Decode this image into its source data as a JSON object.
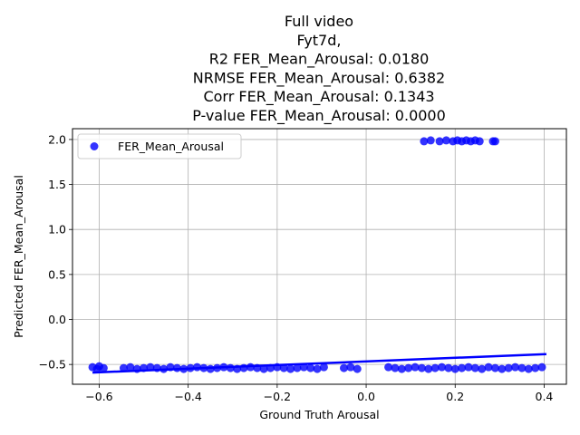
{
  "chart_data": {
    "type": "scatter",
    "title_lines": [
      "Full video",
      "Fyt7d,",
      "R2 FER_Mean_Arousal: 0.0180",
      "NRMSE FER_Mean_Arousal: 0.6382",
      "Corr FER_Mean_Arousal: 0.1343",
      "P-value FER_Mean_Arousal: 0.0000"
    ],
    "xlabel": "Ground Truth Arousal",
    "ylabel": "Predicted FER_Mean_Arousal",
    "xlim": [
      -0.66,
      0.45
    ],
    "ylim": [
      -0.72,
      2.12
    ],
    "xticks": [
      -0.6,
      -0.4,
      -0.2,
      0.0,
      0.2,
      0.4
    ],
    "xtick_labels": [
      "−0.6",
      "−0.4",
      "−0.2",
      "0.0",
      "0.2",
      "0.4"
    ],
    "yticks": [
      -0.5,
      0.0,
      0.5,
      1.0,
      1.5,
      2.0
    ],
    "ytick_labels": [
      "−0.5",
      "0.0",
      "0.5",
      "1.0",
      "1.5",
      "2.0"
    ],
    "grid": true,
    "legend_position": "top-left",
    "series": [
      {
        "name": "FER_Mean_Arousal",
        "color": "#0000ff",
        "points": [
          [
            -0.615,
            -0.53
          ],
          [
            -0.605,
            -0.55
          ],
          [
            -0.6,
            -0.52
          ],
          [
            -0.59,
            -0.54
          ],
          [
            -0.545,
            -0.54
          ],
          [
            -0.53,
            -0.53
          ],
          [
            -0.515,
            -0.55
          ],
          [
            -0.5,
            -0.54
          ],
          [
            -0.485,
            -0.53
          ],
          [
            -0.47,
            -0.54
          ],
          [
            -0.455,
            -0.55
          ],
          [
            -0.44,
            -0.53
          ],
          [
            -0.425,
            -0.54
          ],
          [
            -0.41,
            -0.55
          ],
          [
            -0.395,
            -0.54
          ],
          [
            -0.38,
            -0.53
          ],
          [
            -0.365,
            -0.54
          ],
          [
            -0.35,
            -0.55
          ],
          [
            -0.335,
            -0.54
          ],
          [
            -0.32,
            -0.53
          ],
          [
            -0.305,
            -0.54
          ],
          [
            -0.29,
            -0.55
          ],
          [
            -0.275,
            -0.54
          ],
          [
            -0.26,
            -0.53
          ],
          [
            -0.245,
            -0.54
          ],
          [
            -0.23,
            -0.55
          ],
          [
            -0.215,
            -0.54
          ],
          [
            -0.2,
            -0.53
          ],
          [
            -0.185,
            -0.54
          ],
          [
            -0.17,
            -0.55
          ],
          [
            -0.155,
            -0.54
          ],
          [
            -0.14,
            -0.53
          ],
          [
            -0.125,
            -0.54
          ],
          [
            -0.11,
            -0.55
          ],
          [
            -0.095,
            -0.53
          ],
          [
            -0.05,
            -0.54
          ],
          [
            -0.035,
            -0.53
          ],
          [
            -0.02,
            -0.55
          ],
          [
            0.05,
            -0.53
          ],
          [
            0.065,
            -0.54
          ],
          [
            0.08,
            -0.55
          ],
          [
            0.095,
            -0.54
          ],
          [
            0.11,
            -0.53
          ],
          [
            0.125,
            -0.54
          ],
          [
            0.14,
            -0.55
          ],
          [
            0.155,
            -0.54
          ],
          [
            0.17,
            -0.53
          ],
          [
            0.185,
            -0.54
          ],
          [
            0.2,
            -0.55
          ],
          [
            0.215,
            -0.54
          ],
          [
            0.23,
            -0.53
          ],
          [
            0.245,
            -0.54
          ],
          [
            0.26,
            -0.55
          ],
          [
            0.275,
            -0.53
          ],
          [
            0.29,
            -0.54
          ],
          [
            0.305,
            -0.55
          ],
          [
            0.32,
            -0.54
          ],
          [
            0.335,
            -0.53
          ],
          [
            0.35,
            -0.54
          ],
          [
            0.365,
            -0.55
          ],
          [
            0.38,
            -0.54
          ],
          [
            0.395,
            -0.53
          ],
          [
            0.13,
            1.98
          ],
          [
            0.145,
            1.99
          ],
          [
            0.165,
            1.98
          ],
          [
            0.18,
            1.99
          ],
          [
            0.195,
            1.98
          ],
          [
            0.205,
            1.99
          ],
          [
            0.215,
            1.98
          ],
          [
            0.225,
            1.99
          ],
          [
            0.235,
            1.98
          ],
          [
            0.245,
            1.99
          ],
          [
            0.255,
            1.98
          ],
          [
            0.285,
            1.98
          ],
          [
            0.29,
            1.98
          ]
        ]
      }
    ],
    "regression_line": {
      "x": [
        -0.615,
        0.405
      ],
      "y": [
        -0.59,
        -0.385
      ],
      "color": "#0000ff"
    }
  }
}
